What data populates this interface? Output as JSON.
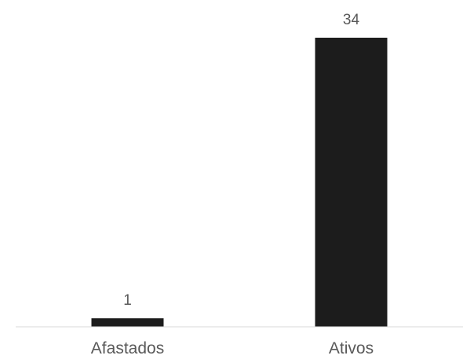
{
  "chart_data": {
    "type": "bar",
    "categories": [
      "Afastados",
      "Ativos"
    ],
    "values": [
      1,
      34
    ],
    "data_labels": [
      "1",
      "34"
    ],
    "title": "",
    "xlabel": "",
    "ylabel": "",
    "ylim": [
      0,
      34
    ],
    "grid": false,
    "legend": "none",
    "colors": {
      "bar": "#1c1c1c",
      "axis": "#d9d9d9",
      "label": "#595959"
    }
  }
}
